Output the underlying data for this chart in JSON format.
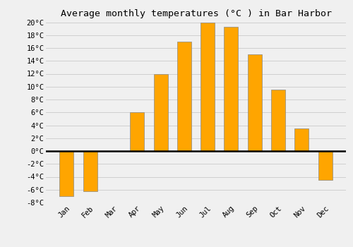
{
  "title": "Average monthly temperatures (°C ) in Bar Harbor",
  "months": [
    "Jan",
    "Feb",
    "Mar",
    "Apr",
    "May",
    "Jun",
    "Jul",
    "Aug",
    "Sep",
    "Oct",
    "Nov",
    "Dec"
  ],
  "temperatures": [
    -7,
    -6.2,
    0,
    6,
    12,
    17,
    20,
    19.3,
    15,
    9.5,
    3.5,
    -4.5
  ],
  "bar_color": "#FFA500",
  "bar_edge_color": "#888888",
  "ylim": [
    -8,
    20
  ],
  "yticks": [
    -8,
    -6,
    -4,
    -2,
    0,
    2,
    4,
    6,
    8,
    10,
    12,
    14,
    16,
    18,
    20
  ],
  "grid_color": "#d0d0d0",
  "background_color": "#f0f0f0",
  "title_fontsize": 9.5,
  "tick_fontsize": 7.5
}
